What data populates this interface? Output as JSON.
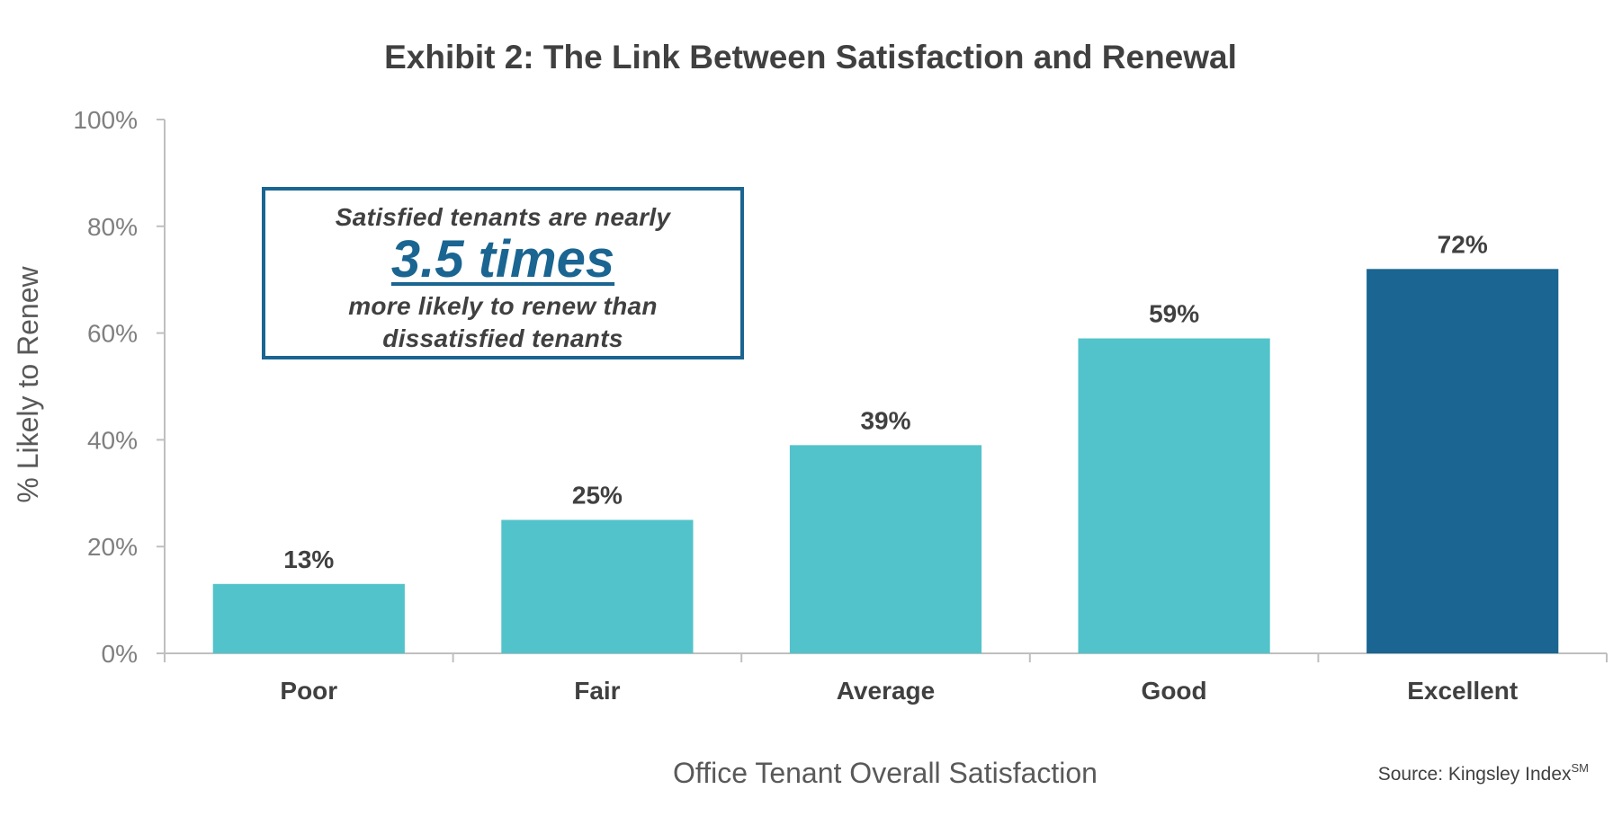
{
  "chart_data": {
    "type": "bar",
    "title": "Exhibit 2: The Link Between Satisfaction and Renewal",
    "xlabel": "Office Tenant Overall Satisfaction",
    "ylabel": "% Likely to Renew",
    "categories": [
      "Poor",
      "Fair",
      "Average",
      "Good",
      "Excellent"
    ],
    "values": [
      13,
      25,
      39,
      59,
      72
    ],
    "data_labels": [
      "13%",
      "25%",
      "39%",
      "59%",
      "72%"
    ],
    "ylim": [
      0,
      100
    ],
    "yticks": [
      0,
      20,
      40,
      60,
      80,
      100
    ],
    "ytick_labels": [
      "0%",
      "20%",
      "40%",
      "60%",
      "80%",
      "100%"
    ],
    "grid": false,
    "legend": "none",
    "colors": {
      "default_bar": "#52c3ca",
      "highlight_bar": "#1a6591",
      "highlight_category": "Excellent",
      "axis": "#bfbfbf"
    }
  },
  "callout": {
    "line1": "Satisfied tenants are nearly",
    "emphasis": "3.5 times",
    "line3a": "more likely to renew than",
    "line3b": "dissatisfied tenants",
    "accent": "#1a6591"
  },
  "source": {
    "text": "Source: Kingsley Index",
    "superscript": "SM"
  }
}
